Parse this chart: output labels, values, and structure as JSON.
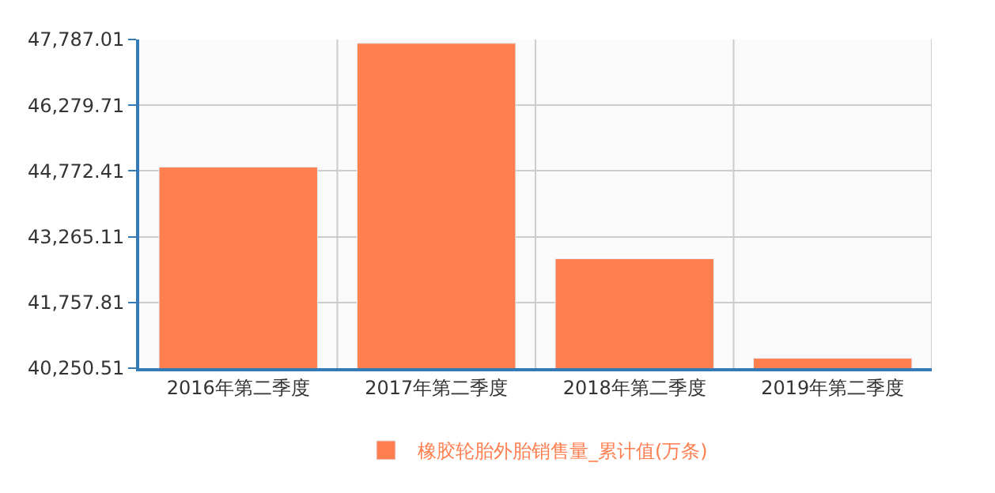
{
  "chart_data": {
    "type": "bar",
    "categories": [
      "2016年第二季度",
      "2017年第二季度",
      "2018年第二季度",
      "2019年第二季度"
    ],
    "series": [
      {
        "name": "橡胶轮胎外胎销售量_累计值(万条)",
        "color": "#ff7f50",
        "values": [
          44860,
          47700,
          42760,
          40480
        ]
      }
    ],
    "ylim": [
      40250.51,
      47787.01
    ],
    "yticks": [
      {
        "value": 40250.51,
        "label": "40,250.51"
      },
      {
        "value": 41757.81,
        "label": "41,757.81"
      },
      {
        "value": 43265.11,
        "label": "43,265.11"
      },
      {
        "value": 44772.41,
        "label": "44,772.41"
      },
      {
        "value": 46279.71,
        "label": "46,279.71"
      },
      {
        "value": 47787.01,
        "label": "47,787.01"
      }
    ],
    "grid": true,
    "legend": "bottom"
  }
}
